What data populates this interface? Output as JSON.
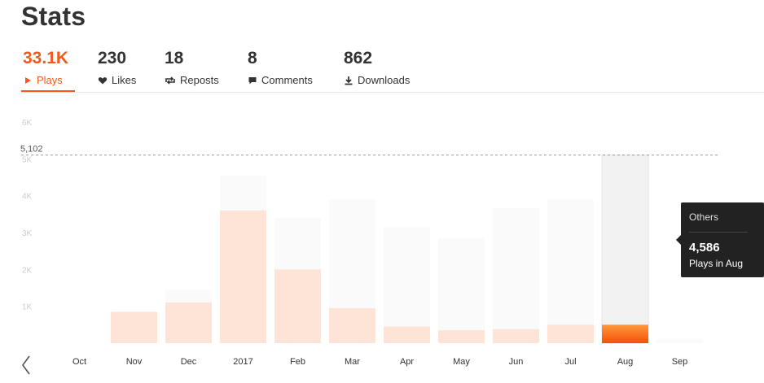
{
  "page": {
    "title": "Stats"
  },
  "stats": [
    {
      "id": "plays",
      "value": "33.1K",
      "label": "Plays",
      "icon": "play-icon",
      "active": true
    },
    {
      "id": "likes",
      "value": "230",
      "label": "Likes",
      "icon": "heart-icon",
      "active": false
    },
    {
      "id": "reposts",
      "value": "18",
      "label": "Reposts",
      "icon": "repost-icon",
      "active": false
    },
    {
      "id": "comments",
      "value": "8",
      "label": "Comments",
      "icon": "comment-icon",
      "active": false
    },
    {
      "id": "downloads",
      "value": "862",
      "label": "Downloads",
      "icon": "download-icon",
      "active": false
    }
  ],
  "colors": {
    "accent": "#f5581d",
    "bar_light": "#fde4d6",
    "bar_ghost": "#fafafa",
    "tooltip_bg": "#222222"
  },
  "chart_data": {
    "type": "bar",
    "categories": [
      "Oct",
      "Nov",
      "Dec",
      "2017",
      "Feb",
      "Mar",
      "Apr",
      "May",
      "Jun",
      "Jul",
      "Aug",
      "Sep"
    ],
    "values": [
      0,
      850,
      1100,
      3600,
      2000,
      950,
      450,
      350,
      380,
      500,
      500,
      0
    ],
    "totals": [
      0,
      850,
      1450,
      4550,
      3400,
      3900,
      3150,
      2850,
      3650,
      3900,
      5102,
      100
    ],
    "ylim": [
      0,
      6000
    ],
    "yticks": [
      "1K",
      "2K",
      "3K",
      "4K",
      "5K",
      "6K"
    ],
    "max_line": {
      "value": 5102,
      "label": "5,102"
    },
    "selected_index": 10,
    "grid": false,
    "tooltip": {
      "series": "Others",
      "value": "4,586",
      "caption": "Plays in Aug"
    }
  }
}
